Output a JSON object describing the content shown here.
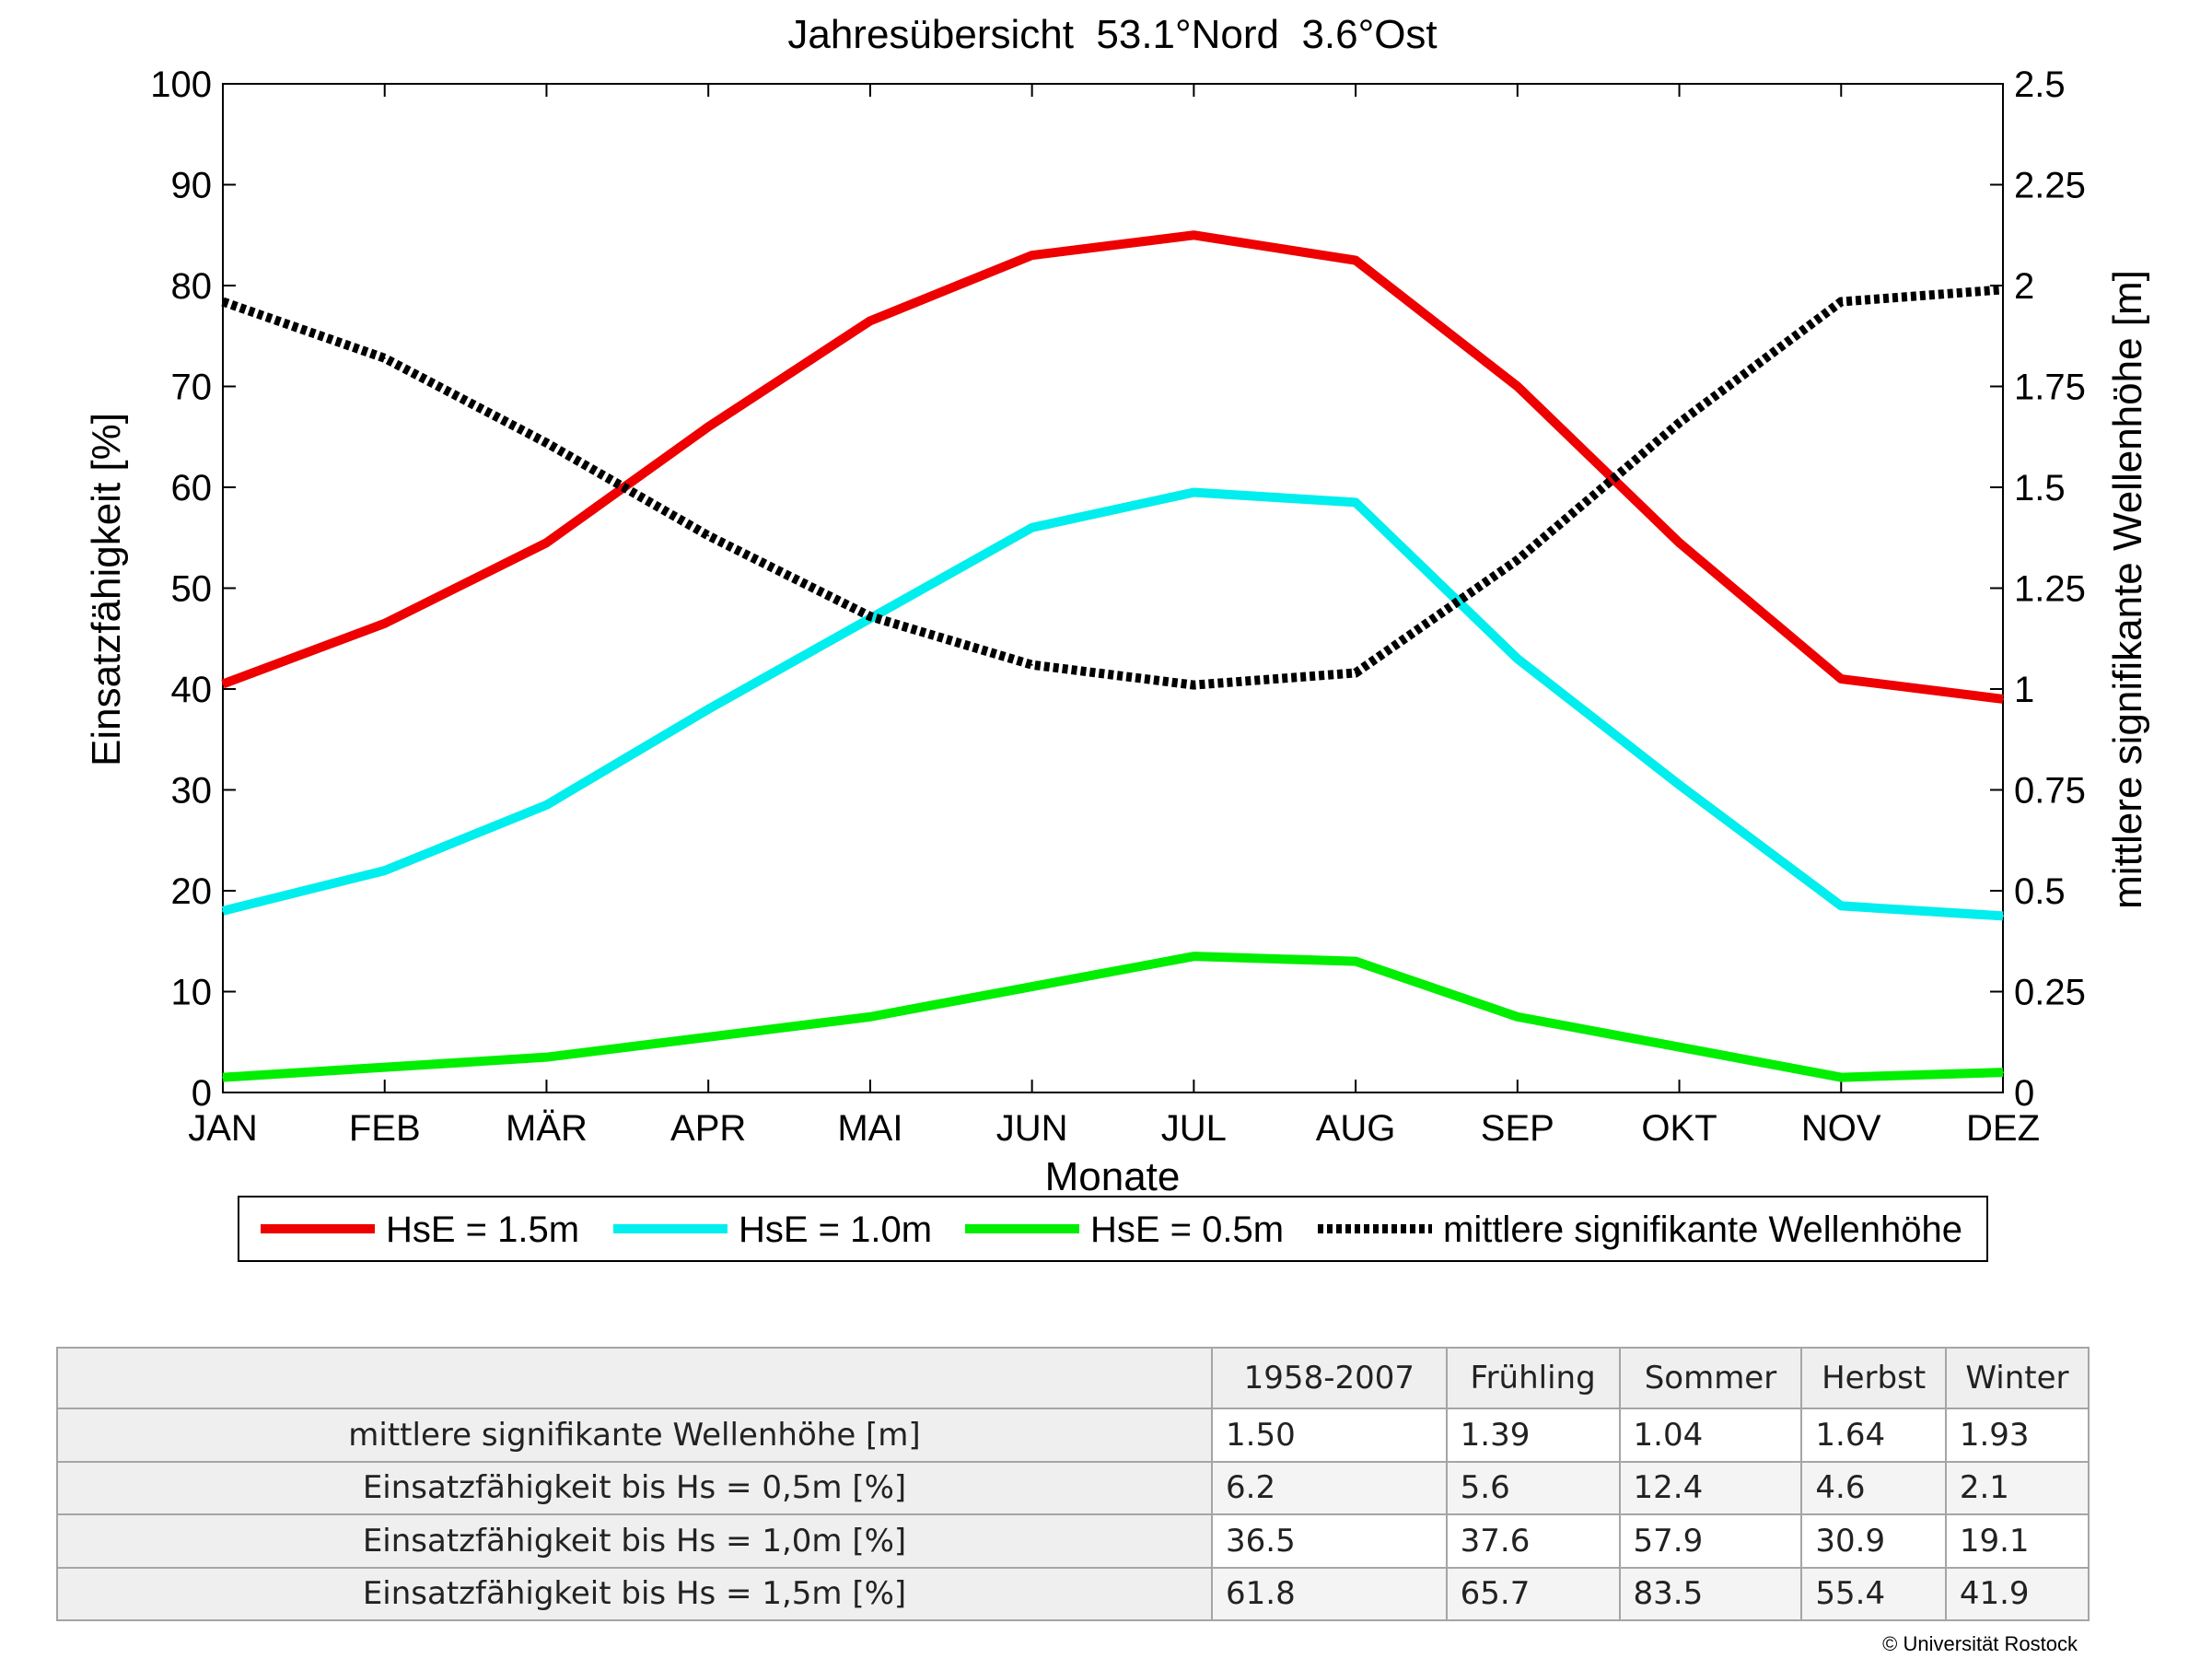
{
  "chart_data": {
    "type": "line",
    "title": "Jahresübersicht  53.1°Nord  3.6°Ost",
    "xlabel": "Monate",
    "ylabel_left": "Einsatzfähigkeit [%]",
    "ylabel_right": "mittlere signifikante Wellenhöhe [m]",
    "categories": [
      "JAN",
      "FEB",
      "MÄR",
      "APR",
      "MAI",
      "JUN",
      "JUL",
      "AUG",
      "SEP",
      "OKT",
      "NOV",
      "DEZ"
    ],
    "ylim_left": [
      0,
      100
    ],
    "ylim_right": [
      0,
      2.5
    ],
    "yticks_left": [
      "0",
      "10",
      "20",
      "30",
      "40",
      "50",
      "60",
      "70",
      "80",
      "90",
      "100"
    ],
    "yticks_right": [
      "0",
      "0.25",
      "0.5",
      "0.75",
      "1",
      "1.25",
      "1.5",
      "1.75",
      "2",
      "2.25",
      "2.5"
    ],
    "grid": false,
    "legend_position": "bottom",
    "series": [
      {
        "name": "HsE = 1.5m",
        "axis": "left",
        "color": "#ee0000",
        "style": "solid",
        "values": [
          40.5,
          46.5,
          54.5,
          66,
          76.5,
          83,
          85,
          82.5,
          70,
          54.5,
          41,
          39
        ]
      },
      {
        "name": "HsE = 1.0m",
        "axis": "left",
        "color": "#00eeee",
        "style": "solid",
        "values": [
          18,
          22,
          28.5,
          38,
          47,
          56,
          59.5,
          58.5,
          43,
          30.5,
          18.5,
          17.5
        ]
      },
      {
        "name": "HsE = 0.5m",
        "axis": "left",
        "color": "#00ee00",
        "style": "solid",
        "values": [
          1.5,
          2.5,
          3.5,
          5.5,
          7.5,
          10.5,
          13.5,
          13,
          7.5,
          4.5,
          1.5,
          2
        ]
      },
      {
        "name": "mittlere signifikante Wellenhöhe",
        "axis": "right",
        "color": "#000000",
        "style": "dotted",
        "values": [
          1.96,
          1.82,
          1.61,
          1.38,
          1.18,
          1.06,
          1.01,
          1.04,
          1.32,
          1.66,
          1.96,
          1.99
        ]
      }
    ]
  },
  "table": {
    "headers": [
      "1958-2007",
      "Frühling",
      "Sommer",
      "Herbst",
      "Winter"
    ],
    "rows": [
      {
        "label": "mittlere signifikante Wellenhöhe [m]",
        "values": [
          "1.50",
          "1.39",
          "1.04",
          "1.64",
          "1.93"
        ]
      },
      {
        "label": "Einsatzfähigkeit bis Hs = 0,5m [%]",
        "values": [
          "6.2",
          "5.6",
          "12.4",
          "4.6",
          "2.1"
        ]
      },
      {
        "label": "Einsatzfähigkeit bis Hs = 1,0m [%]",
        "values": [
          "36.5",
          "37.6",
          "57.9",
          "30.9",
          "19.1"
        ]
      },
      {
        "label": "Einsatzfähigkeit bis Hs = 1,5m [%]",
        "values": [
          "61.8",
          "65.7",
          "83.5",
          "55.4",
          "41.9"
        ]
      }
    ]
  },
  "footer": {
    "copyright": "© Universität Rostock"
  }
}
